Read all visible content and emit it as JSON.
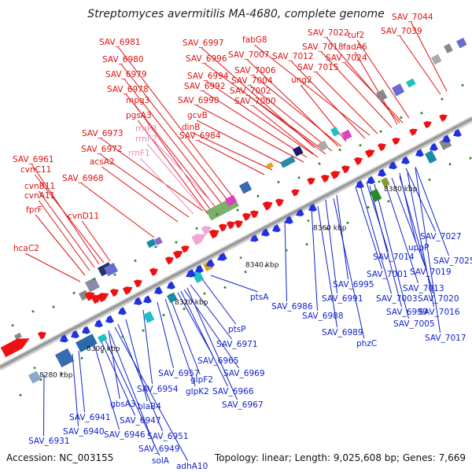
{
  "title": "Streptomyces avermitilis MA-4680, complete genome",
  "footer": {
    "accession": "Accession: NC_003155",
    "summary": "Topology: linear; Length: 9,025,608 bp; Genes: 7,669"
  },
  "colors": {
    "forward_label": "#dd1111",
    "reverse_label": "#1122cc",
    "rrna_label": "#ee88bb",
    "axis": "#9a9a9a",
    "forward_gene": "#ee1111",
    "reverse_gene": "#2233dd",
    "rrna_gene": "#f2a6d2"
  },
  "axis_ticks": [
    "8280 kbp",
    "8300 kbp",
    "8320 kbp",
    "8340 kbp",
    "8360 kbp",
    "8380 kbp"
  ],
  "labels_top": [
    "SAV_7044",
    "SAV_7039",
    "SAV_7022",
    "tuf2",
    "SAV_7018",
    "fadA6",
    "SAV_7024",
    "fabG8",
    "SAV_7012",
    "SAV_7015",
    "SAV_6997",
    "SAV_7007",
    "SAV_6996",
    "SAV_7006",
    "SAV_6994",
    "SAV_7004",
    "SAV_6992",
    "SAV_7002",
    "SAV_7000",
    "ung2",
    "SAV_6990",
    "SAV_6981",
    "SAV_6980",
    "SAV_6979",
    "SAV_6978",
    "mpg3",
    "pgsA3",
    "gcvB",
    "dinB",
    "SAV_6984",
    "SAV_6973",
    "rrnF3",
    "rrnF2",
    "rrnF1",
    "SAV_6972",
    "acsA2",
    "SAV_6968",
    "SAV_6961",
    "cvnC11",
    "cvnB11",
    "cvnA11",
    "fprF",
    "cvnD11",
    "hcaC2"
  ],
  "rrna_labels": [
    "rrnF3",
    "rrnF2",
    "rrnF1"
  ],
  "labels_bottom": [
    "SAV_7027",
    "uppP",
    "SAV_7025",
    "SAV_7014",
    "SAV_7019",
    "SAV_7013",
    "SAV_7001",
    "SAV_7020",
    "SAV_7003",
    "SAV_7016",
    "SAV_6995",
    "SAV_7005",
    "SAV_6999",
    "SAV_7017",
    "SAV_6991",
    "SAV_6986",
    "SAV_6988",
    "SAV_6989",
    "phzC",
    "ptsA",
    "ptsP",
    "SAV_6971",
    "SAV_6965",
    "SAV_6969",
    "SAV_6957",
    "glpF2",
    "SAV_6966",
    "glpK2",
    "SAV_6954",
    "SAV_6967",
    "blaB4",
    "gbsA3",
    "SAV_6947",
    "SAV_6941",
    "SAV_6940",
    "SAV_6946",
    "SAV_6951",
    "SAV_6949",
    "SAV_6931",
    "solA",
    "adhA10"
  ]
}
